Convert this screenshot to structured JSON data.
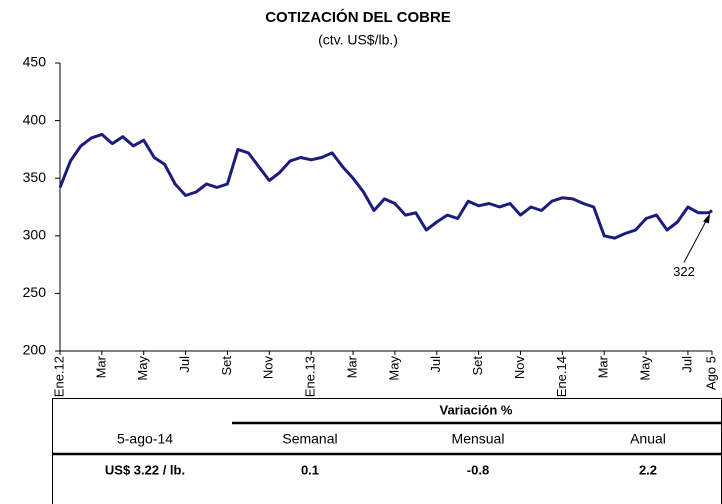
{
  "chart_data": {
    "type": "line",
    "title": "COTIZACIÓN DEL COBRE",
    "subtitle": "(ctv. US$/lb.)",
    "color": "#1c1c7c",
    "x": [
      0,
      0.5,
      1,
      1.5,
      2,
      2.5,
      3,
      3.5,
      4,
      4.5,
      5,
      5.5,
      6,
      6.5,
      7,
      7.5,
      8,
      8.5,
      9,
      9.5,
      10,
      10.5,
      11,
      11.5,
      12,
      12.5,
      13,
      13.5,
      14,
      14.5,
      15,
      15.5,
      16,
      16.5,
      17,
      17.5,
      18,
      18.5,
      19,
      19.5,
      20,
      20.5,
      21,
      21.5,
      22,
      22.5,
      23,
      23.5,
      24,
      24.5,
      25,
      25.5,
      26,
      26.5,
      27,
      27.5,
      28,
      28.5,
      29,
      29.5,
      30,
      30.5,
      31,
      31.15
    ],
    "values": [
      342,
      365,
      378,
      385,
      388,
      380,
      386,
      378,
      383,
      368,
      362,
      345,
      335,
      338,
      345,
      342,
      345,
      375,
      372,
      360,
      348,
      355,
      365,
      368,
      366,
      368,
      372,
      360,
      350,
      338,
      322,
      332,
      328,
      318,
      320,
      305,
      312,
      318,
      315,
      330,
      326,
      328,
      325,
      328,
      318,
      325,
      322,
      330,
      333,
      332,
      328,
      325,
      300,
      298,
      302,
      305,
      315,
      318,
      305,
      312,
      325,
      320,
      320,
      322
    ],
    "xlim": [
      0,
      31.15
    ],
    "xticks": [
      {
        "value": 0,
        "label": "Ene.12"
      },
      {
        "value": 2,
        "label": "Mar"
      },
      {
        "value": 4,
        "label": "May"
      },
      {
        "value": 6,
        "label": "Jul"
      },
      {
        "value": 8,
        "label": "Set"
      },
      {
        "value": 10,
        "label": "Nov"
      },
      {
        "value": 12,
        "label": "Ene.13"
      },
      {
        "value": 14,
        "label": "Mar"
      },
      {
        "value": 16,
        "label": "May"
      },
      {
        "value": 18,
        "label": "Jul"
      },
      {
        "value": 20,
        "label": "Set"
      },
      {
        "value": 22,
        "label": "Nov"
      },
      {
        "value": 24,
        "label": "Ene.14"
      },
      {
        "value": 26,
        "label": "Mar"
      },
      {
        "value": 28,
        "label": "May"
      },
      {
        "value": 30,
        "label": "Jul"
      },
      {
        "value": 31.15,
        "label": "Ago 5"
      }
    ],
    "ylim": [
      200,
      450
    ],
    "yticks": [
      200,
      250,
      300,
      350,
      400,
      450
    ],
    "grid": false,
    "annotation": "322"
  },
  "table": {
    "header": "Variación %",
    "columns": [
      "5-ago-14",
      "Semanal",
      "Mensual",
      "Anual"
    ],
    "row": [
      "US$ 3.22 / lb.",
      "0.1",
      "-0.8",
      "2.2"
    ]
  }
}
